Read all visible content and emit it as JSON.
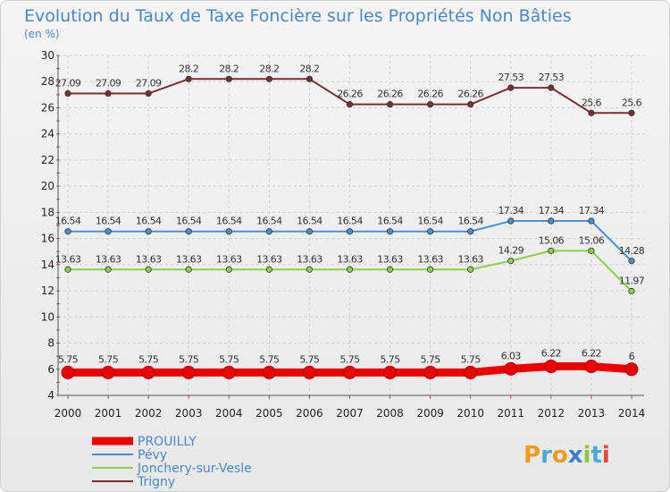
{
  "chart_data": {
    "type": "line",
    "title": "Evolution du Taux de Taxe Foncière sur les Propriétés Non Bâties",
    "subtitle": "(en %)",
    "xlabel": "",
    "ylabel": "",
    "ylim": [
      4,
      30
    ],
    "yticks": [
      "4",
      "6",
      "8",
      "10",
      "12",
      "14",
      "16",
      "18",
      "20",
      "22",
      "24",
      "26",
      "28",
      "30"
    ],
    "grid": true,
    "x": [
      "2000",
      "2001",
      "2002",
      "2003",
      "2004",
      "2005",
      "2006",
      "2007",
      "2008",
      "2009",
      "2010",
      "2011",
      "2012",
      "2013",
      "2014"
    ],
    "series": [
      {
        "name": "PROUILLY",
        "color": "#ee0000",
        "values": [
          5.75,
          5.75,
          5.75,
          5.75,
          5.75,
          5.75,
          5.75,
          5.75,
          5.75,
          5.75,
          5.75,
          6.03,
          6.22,
          6.22,
          6
        ],
        "labels": [
          "5.75",
          "5.75",
          "5.75",
          "5.75",
          "5.75",
          "5.75",
          "5.75",
          "5.75",
          "5.75",
          "5.75",
          "5.75",
          "6.03",
          "6.22",
          "6.22",
          "6"
        ]
      },
      {
        "name": "Pévy",
        "color": "#4a90d0",
        "values": [
          16.54,
          16.54,
          16.54,
          16.54,
          16.54,
          16.54,
          16.54,
          16.54,
          16.54,
          16.54,
          16.54,
          17.34,
          17.34,
          17.34,
          14.28
        ],
        "labels": [
          "16.54",
          "16.54",
          "16.54",
          "16.54",
          "16.54",
          "16.54",
          "16.54",
          "16.54",
          "16.54",
          "16.54",
          "16.54",
          "17.34",
          "17.34",
          "17.34",
          "14.28"
        ]
      },
      {
        "name": "Jonchery-sur-Vesle",
        "color": "#8dcf4a",
        "values": [
          13.63,
          13.63,
          13.63,
          13.63,
          13.63,
          13.63,
          13.63,
          13.63,
          13.63,
          13.63,
          13.63,
          14.29,
          15.06,
          15.06,
          11.97
        ],
        "labels": [
          "13.63",
          "13.63",
          "13.63",
          "13.63",
          "13.63",
          "13.63",
          "13.63",
          "13.63",
          "13.63",
          "13.63",
          "13.63",
          "14.29",
          "15.06",
          "15.06",
          "11.97"
        ]
      },
      {
        "name": "Trigny",
        "color": "#7a2f33",
        "values": [
          27.09,
          27.09,
          27.09,
          28.2,
          28.2,
          28.2,
          28.2,
          26.26,
          26.26,
          26.26,
          26.26,
          27.53,
          27.53,
          25.6,
          25.6
        ],
        "labels": [
          "27.09",
          "27.09",
          "27.09",
          "28.2",
          "28.2",
          "28.2",
          "28.2",
          "26.26",
          "26.26",
          "26.26",
          "26.26",
          "27.53",
          "27.53",
          "25.6",
          "25.6"
        ]
      }
    ]
  },
  "logo": {
    "text": "Proxiti",
    "letters": [
      {
        "ch": "P",
        "color": "#f29a1e"
      },
      {
        "ch": "r",
        "color": "#49a8e0"
      },
      {
        "ch": "o",
        "color": "#f29a1e"
      },
      {
        "ch": "x",
        "color": "#3b7fd0"
      },
      {
        "ch": "i",
        "color": "#8dc63f"
      },
      {
        "ch": "t",
        "color": "#49a8e0"
      },
      {
        "ch": "i",
        "color": "#e2483d"
      }
    ]
  }
}
